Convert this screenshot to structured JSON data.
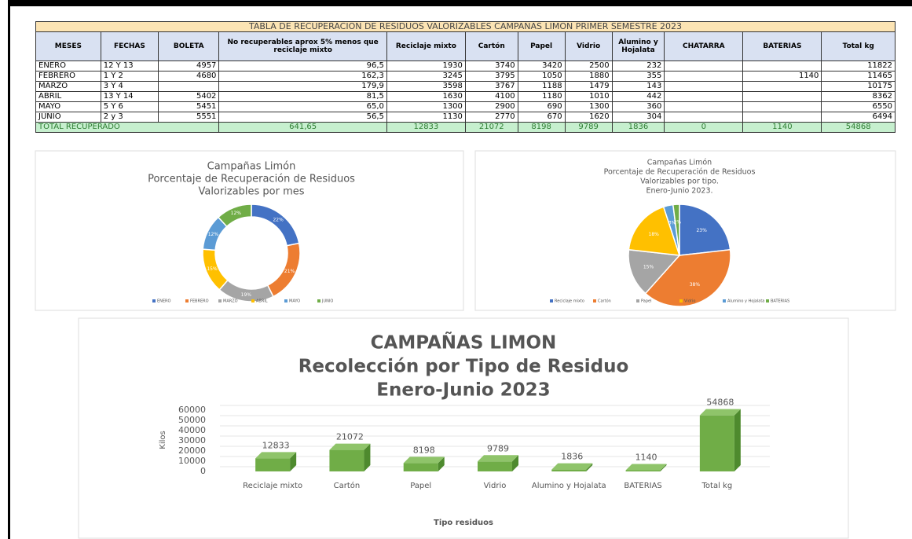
{
  "table": {
    "title": "TABLA DE RECUPERACION DE RESIDUOS VALORIZABLES CAMPAÑAS LIMON PRIMER SEMESTRE 2023",
    "headers": [
      "MESES",
      "FECHAS",
      "BOLETA",
      "No recuperables aprox 5% menos que reciclaje mixto",
      "Reciclaje mixto",
      "Cartón",
      "Papel",
      "Vidrio",
      "Alumino y Hojalata",
      "CHATARRA",
      "BATERIAS",
      "Total kg"
    ],
    "rows": [
      [
        "ENERO",
        "12 Y 13",
        "4957",
        "96,5",
        "1930",
        "3740",
        "3420",
        "2500",
        "232",
        null,
        null,
        "11822"
      ],
      [
        "FEBRERO",
        "1 Y 2",
        "4680",
        "162,3",
        "3245",
        "3795",
        "1050",
        "1880",
        "355",
        null,
        "1140",
        "11465"
      ],
      [
        "MARZO",
        "3 Y 4",
        null,
        "179,9",
        "3598",
        "3767",
        "1188",
        "1479",
        "143",
        null,
        null,
        "10175"
      ],
      [
        "ABRIL",
        "13 Y 14",
        "5402",
        "81,5",
        "1630",
        "4100",
        "1180",
        "1010",
        "442",
        null,
        null,
        "8362"
      ],
      [
        "MAYO",
        "5 Y 6",
        "5451",
        "65,0",
        "1300",
        "2900",
        "690",
        "1300",
        "360",
        null,
        null,
        "6550"
      ],
      [
        "JUNIO",
        "2 y 3",
        "5551",
        "56,5",
        "1130",
        "2770",
        "670",
        "1620",
        "304",
        null,
        null,
        "6494"
      ]
    ],
    "total": [
      "TOTAL RECUPERADO",
      "641,65",
      "12833",
      "21072",
      "8198",
      "9789",
      "1836",
      "0",
      "1140",
      "54868"
    ]
  },
  "chart_data": [
    {
      "type": "doughnut",
      "title": [
        "Campañas Limón",
        "Porcentaje de Recuperación de Residuos",
        "Valorizables por mes"
      ],
      "categories": [
        "ENERO",
        "FEBRERO",
        "MARZO",
        "ABRIL",
        "MAYO",
        "JUNIO"
      ],
      "values": [
        22,
        21,
        19,
        15,
        12,
        12
      ],
      "value_labels": [
        "22%",
        "21%",
        "19%",
        "15%",
        "12%",
        "12%"
      ],
      "colors": [
        "#4472c4",
        "#ed7d31",
        "#a5a5a5",
        "#ffc000",
        "#5b9bd5",
        "#70ad47"
      ],
      "legend": "bottom"
    },
    {
      "type": "pie",
      "title": [
        "Campañas Limón",
        "Porcentaje de Recuperación de Residuos",
        "Valorizables por tipo.",
        "Enero-Junio 2023."
      ],
      "categories": [
        "Reciclaje mixto",
        "Cartón",
        "Papel",
        "Vidrio",
        "Alumino y Hojalata",
        "BATERIAS"
      ],
      "values": [
        23,
        38,
        15,
        18,
        3,
        2
      ],
      "value_labels": [
        "23%",
        "38%",
        "15%",
        "18%",
        "3%",
        "2%"
      ],
      "colors": [
        "#4472c4",
        "#ed7d31",
        "#a5a5a5",
        "#ffc000",
        "#5b9bd5",
        "#70ad47"
      ],
      "legend": "bottom"
    },
    {
      "type": "bar",
      "title": [
        "CAMPAÑAS LIMON",
        "Recolección por Tipo de Residuo",
        "Enero-Junio 2023"
      ],
      "categories": [
        "Reciclaje mixto",
        "Cartón",
        "Papel",
        "Vidrio",
        "Alumino y Hojalata",
        "BATERIAS",
        "Total kg"
      ],
      "values": [
        12833,
        21072,
        8198,
        9789,
        1836,
        1140,
        54868
      ],
      "color": "#70ad47",
      "ylabel": "Kilos",
      "xlabel": "Tipo residuos",
      "ylim": [
        0,
        60000
      ],
      "yticks": [
        0,
        10000,
        20000,
        30000,
        40000,
        50000,
        60000
      ],
      "grid": true
    }
  ]
}
